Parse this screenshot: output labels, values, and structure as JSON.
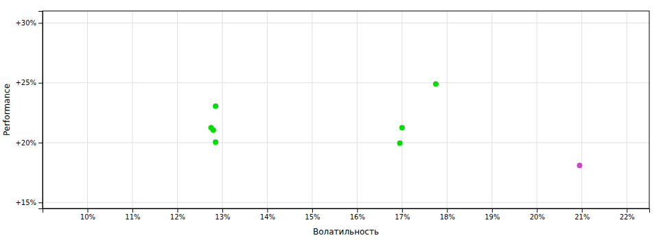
{
  "chart_data": {
    "type": "scatter",
    "xlabel": "Волатильность",
    "ylabel": "Performance",
    "xlim": [
      0.09,
      0.225
    ],
    "ylim": [
      0.145,
      0.31
    ],
    "xticks": [
      {
        "value": 0.1,
        "label": "10%"
      },
      {
        "value": 0.11,
        "label": "11%"
      },
      {
        "value": 0.12,
        "label": "12%"
      },
      {
        "value": 0.13,
        "label": "13%"
      },
      {
        "value": 0.14,
        "label": "14%"
      },
      {
        "value": 0.15,
        "label": "15%"
      },
      {
        "value": 0.16,
        "label": "16%"
      },
      {
        "value": 0.17,
        "label": "17%"
      },
      {
        "value": 0.18,
        "label": "18%"
      },
      {
        "value": 0.19,
        "label": "19%"
      },
      {
        "value": 0.2,
        "label": "20%"
      },
      {
        "value": 0.21,
        "label": "21%"
      },
      {
        "value": 0.22,
        "label": "22%"
      }
    ],
    "yticks": [
      {
        "value": 0.15,
        "label": "+15%"
      },
      {
        "value": 0.2,
        "label": "+20%"
      },
      {
        "value": 0.25,
        "label": "+25%"
      },
      {
        "value": 0.3,
        "label": "+30%"
      }
    ],
    "grid": true,
    "series": [
      {
        "color": "#00dd00",
        "x": [
          0.1285,
          0.1275,
          0.128,
          0.1285,
          0.17,
          0.1695,
          0.1775
        ],
        "values": [
          0.2305,
          0.2125,
          0.2105,
          0.2005,
          0.2125,
          0.1995,
          0.249
        ]
      },
      {
        "color": "#cc44cc",
        "x": [
          0.2095
        ],
        "values": [
          0.181
        ]
      }
    ]
  }
}
